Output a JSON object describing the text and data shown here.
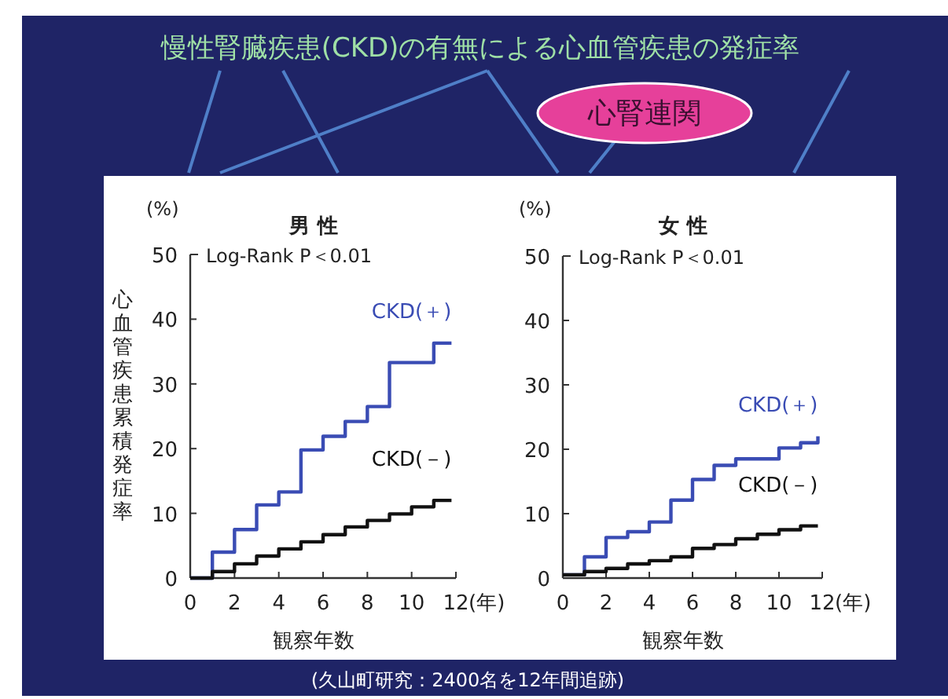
{
  "chart_data": [
    {
      "type": "step",
      "title": "男 性",
      "xlabel": "観察年数",
      "ylabel": "心血管疾患累積発症率",
      "xlim": [
        0,
        12
      ],
      "ylim": [
        0,
        50
      ],
      "xticks": [
        0,
        2,
        4,
        6,
        8,
        10,
        12
      ],
      "yticks": [
        0,
        10,
        20,
        30,
        40,
        50
      ],
      "annotations": [
        "(%)",
        "(年)",
        "Log-Rank P＜0.01",
        "慢性腎臓疾患(CKD)の有無による心血管疾患の発症率",
        "心腎連関",
        "(久山町研究：2400名を12年間追跡)"
      ],
      "series": [
        {
          "name": "CKD(＋)",
          "color": "#3a4cb4",
          "x": [
            0,
            1,
            2,
            3,
            4,
            5,
            6,
            7,
            8,
            9,
            11,
            11.8
          ],
          "values": [
            0,
            4,
            7.5,
            11.3,
            13.3,
            19.8,
            21.9,
            24.2,
            26.5,
            33.3,
            36.3,
            36.3
          ]
        },
        {
          "name": "CKD(－)",
          "color": "#111111",
          "x": [
            0,
            1,
            2,
            3,
            4,
            5,
            6,
            7,
            8,
            9,
            10,
            11,
            11.8
          ],
          "values": [
            0,
            1,
            2.2,
            3.4,
            4.5,
            5.6,
            6.7,
            7.9,
            8.9,
            9.9,
            11,
            12,
            12
          ]
        }
      ]
    },
    {
      "type": "step",
      "title": "女 性",
      "xlabel": "観察年数",
      "xlim": [
        0,
        12
      ],
      "ylim": [
        0,
        50
      ],
      "xticks": [
        0,
        2,
        4,
        6,
        8,
        10,
        12
      ],
      "yticks": [
        0,
        10,
        20,
        30,
        40,
        50
      ],
      "annotations": [
        "(%)",
        "(年)",
        "Log-Rank P＜0.01"
      ],
      "series": [
        {
          "name": "CKD(＋)",
          "color": "#3a4cb4",
          "x": [
            0,
            1,
            2,
            3,
            4,
            5,
            6,
            7,
            8,
            10,
            11,
            11.8
          ],
          "values": [
            0.5,
            3.3,
            6.3,
            7.2,
            8.7,
            12.1,
            15.3,
            17.5,
            18.5,
            20.2,
            21,
            22
          ]
        },
        {
          "name": "CKD(－)",
          "color": "#111111",
          "x": [
            0,
            1,
            2,
            3,
            4,
            5,
            6,
            7,
            8,
            9,
            10,
            11,
            11.8
          ],
          "values": [
            0.5,
            1,
            1.5,
            2.2,
            2.7,
            3.3,
            4.6,
            5.2,
            6.1,
            6.8,
            7.5,
            8.1,
            8.1
          ]
        }
      ]
    }
  ]
}
